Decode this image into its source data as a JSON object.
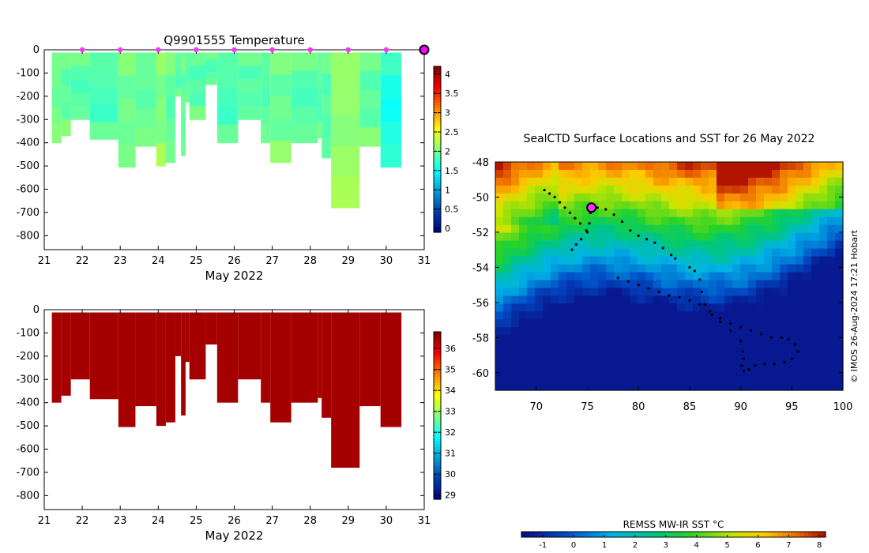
{
  "chart_data": [
    {
      "type": "heatmap",
      "title": "Q9901555  Temperature",
      "xlabel": "May 2022",
      "ylabel": "",
      "xlim": [
        21,
        31
      ],
      "ylim": [
        -860,
        0
      ],
      "xticks": [
        "21",
        "22",
        "23",
        "24",
        "25",
        "26",
        "27",
        "28",
        "29",
        "30",
        "31"
      ],
      "yticks": [
        "0",
        "-100",
        "-200",
        "-300",
        "-400",
        "-500",
        "-600",
        "-700",
        "-800"
      ],
      "colorbar_ticks": [
        "0",
        "0.5",
        "1",
        "1.5",
        "2",
        "2.5",
        "3",
        "3.5",
        "4"
      ],
      "colorbar_range": [
        -0.1,
        4.2
      ],
      "markers_x": [
        22,
        23,
        24,
        25,
        26,
        27,
        28,
        29,
        30
      ],
      "current_position_x": 31,
      "columns": [
        {
          "x0": 21.2,
          "x1": 21.45,
          "depth": 400,
          "value": 1.95
        },
        {
          "x0": 21.45,
          "x1": 21.7,
          "depth": 370,
          "value": 1.9
        },
        {
          "x0": 21.7,
          "x1": 22.2,
          "depth": 300,
          "value": 1.85
        },
        {
          "x0": 22.2,
          "x1": 22.95,
          "depth": 385,
          "value": 1.8
        },
        {
          "x0": 22.95,
          "x1": 23.4,
          "depth": 505,
          "value": 1.95
        },
        {
          "x0": 23.4,
          "x1": 23.95,
          "depth": 415,
          "value": 1.9
        },
        {
          "x0": 23.95,
          "x1": 24.2,
          "depth": 500,
          "value": 2.05
        },
        {
          "x0": 24.2,
          "x1": 24.45,
          "depth": 485,
          "value": 1.9
        },
        {
          "x0": 24.45,
          "x1": 24.6,
          "depth": 200,
          "value": 1.85
        },
        {
          "x0": 24.6,
          "x1": 24.72,
          "depth": 455,
          "value": 1.9
        },
        {
          "x0": 24.72,
          "x1": 24.82,
          "depth": 225,
          "value": 1.85
        },
        {
          "x0": 24.82,
          "x1": 25.25,
          "depth": 300,
          "value": 1.85
        },
        {
          "x0": 25.25,
          "x1": 25.55,
          "depth": 150,
          "value": 1.85
        },
        {
          "x0": 25.55,
          "x1": 26.1,
          "depth": 400,
          "value": 1.8
        },
        {
          "x0": 26.1,
          "x1": 26.7,
          "depth": 300,
          "value": 1.85
        },
        {
          "x0": 26.7,
          "x1": 26.95,
          "depth": 400,
          "value": 1.85
        },
        {
          "x0": 26.95,
          "x1": 27.5,
          "depth": 485,
          "value": 1.95
        },
        {
          "x0": 27.5,
          "x1": 28.2,
          "depth": 400,
          "value": 1.85
        },
        {
          "x0": 28.2,
          "x1": 28.3,
          "depth": 380,
          "value": 1.85
        },
        {
          "x0": 28.3,
          "x1": 28.55,
          "depth": 465,
          "value": 1.85
        },
        {
          "x0": 28.55,
          "x1": 29.3,
          "depth": 680,
          "value": 2.1
        },
        {
          "x0": 29.3,
          "x1": 29.85,
          "depth": 415,
          "value": 1.9
        },
        {
          "x0": 29.85,
          "x1": 30.4,
          "depth": 505,
          "value": 1.6
        }
      ]
    },
    {
      "type": "heatmap",
      "title": "",
      "xlabel": "May 2022",
      "ylabel": "",
      "xlim": [
        21,
        31
      ],
      "ylim": [
        -860,
        0
      ],
      "xticks": [
        "21",
        "22",
        "23",
        "24",
        "25",
        "26",
        "27",
        "28",
        "29",
        "30",
        "31"
      ],
      "yticks": [
        "0",
        "-100",
        "-200",
        "-300",
        "-400",
        "-500",
        "-600",
        "-700",
        "-800"
      ],
      "colorbar_ticks": [
        "29",
        "30",
        "31",
        "32",
        "33",
        "34",
        "35",
        "36"
      ],
      "colorbar_range": [
        28.8,
        36.8
      ],
      "fill_value": 36.5,
      "columns": [
        {
          "x0": 21.2,
          "x1": 21.45,
          "depth": 400
        },
        {
          "x0": 21.45,
          "x1": 21.7,
          "depth": 370
        },
        {
          "x0": 21.7,
          "x1": 22.2,
          "depth": 300
        },
        {
          "x0": 22.2,
          "x1": 22.95,
          "depth": 385
        },
        {
          "x0": 22.95,
          "x1": 23.4,
          "depth": 505
        },
        {
          "x0": 23.4,
          "x1": 23.95,
          "depth": 415
        },
        {
          "x0": 23.95,
          "x1": 24.2,
          "depth": 500
        },
        {
          "x0": 24.2,
          "x1": 24.45,
          "depth": 485
        },
        {
          "x0": 24.45,
          "x1": 24.6,
          "depth": 200
        },
        {
          "x0": 24.6,
          "x1": 24.72,
          "depth": 455
        },
        {
          "x0": 24.72,
          "x1": 24.82,
          "depth": 225
        },
        {
          "x0": 24.82,
          "x1": 25.25,
          "depth": 300
        },
        {
          "x0": 25.25,
          "x1": 25.55,
          "depth": 150
        },
        {
          "x0": 25.55,
          "x1": 26.1,
          "depth": 400
        },
        {
          "x0": 26.1,
          "x1": 26.7,
          "depth": 300
        },
        {
          "x0": 26.7,
          "x1": 26.95,
          "depth": 400
        },
        {
          "x0": 26.95,
          "x1": 27.5,
          "depth": 485
        },
        {
          "x0": 27.5,
          "x1": 28.2,
          "depth": 400
        },
        {
          "x0": 28.2,
          "x1": 28.3,
          "depth": 380
        },
        {
          "x0": 28.3,
          "x1": 28.55,
          "depth": 465
        },
        {
          "x0": 28.55,
          "x1": 29.3,
          "depth": 680
        },
        {
          "x0": 29.3,
          "x1": 29.85,
          "depth": 415
        },
        {
          "x0": 29.85,
          "x1": 30.4,
          "depth": 505
        }
      ]
    },
    {
      "type": "scatter",
      "title": "SealCTD Surface Locations and SST for 26 May 2022",
      "xlabel": "",
      "ylabel": "",
      "xlim": [
        66,
        100
      ],
      "ylim": [
        -61,
        -48
      ],
      "xticks": [
        "70",
        "75",
        "80",
        "85",
        "90",
        "95",
        "100"
      ],
      "yticks": [
        "-48",
        "-50",
        "-52",
        "-54",
        "-56",
        "-58",
        "-60"
      ],
      "colorbar_label": "REMSS MW-IR SST °C",
      "colorbar_ticks": [
        "-1",
        "0",
        "1",
        "2",
        "3",
        "4",
        "5",
        "6",
        "7",
        "8"
      ],
      "colorbar_range": [
        -1.7,
        8.2
      ],
      "current_position": {
        "lon": 75.4,
        "lat": -50.6
      },
      "tracks": [
        [
          [
            70.8,
            -49.6
          ],
          [
            71.3,
            -49.8
          ],
          [
            71.8,
            -50.0
          ],
          [
            72.3,
            -50.3
          ],
          [
            72.8,
            -50.6
          ],
          [
            73.3,
            -50.9
          ],
          [
            73.8,
            -51.2
          ],
          [
            74.3,
            -51.5
          ],
          [
            74.9,
            -51.9
          ]
        ],
        [
          [
            75.3,
            -50.7
          ],
          [
            76.0,
            -50.6
          ],
          [
            76.8,
            -50.7
          ],
          [
            77.6,
            -51.0
          ],
          [
            78.4,
            -51.4
          ],
          [
            79.2,
            -51.9
          ],
          [
            80.0,
            -52.2
          ],
          [
            80.8,
            -52.4
          ],
          [
            81.6,
            -52.6
          ],
          [
            82.4,
            -52.9
          ],
          [
            83.2,
            -53.3
          ],
          [
            83.6,
            -53.5
          ]
        ],
        [
          [
            75.3,
            -50.9
          ],
          [
            75.2,
            -51.5
          ],
          [
            75.0,
            -52.0
          ],
          [
            74.4,
            -52.4
          ],
          [
            73.9,
            -52.7
          ],
          [
            73.5,
            -53.0
          ]
        ],
        [
          [
            78.0,
            -54.6
          ],
          [
            79.0,
            -54.8
          ],
          [
            80.0,
            -55.0
          ],
          [
            81.0,
            -55.2
          ],
          [
            82.0,
            -55.4
          ],
          [
            83.0,
            -55.6
          ],
          [
            84.0,
            -55.7
          ],
          [
            85.0,
            -55.9
          ],
          [
            86.0,
            -56.1
          ],
          [
            87.0,
            -56.5
          ],
          [
            88.0,
            -56.9
          ],
          [
            89.0,
            -57.2
          ],
          [
            90.0,
            -57.4
          ],
          [
            91.0,
            -57.6
          ],
          [
            92.0,
            -57.8
          ],
          [
            93.0,
            -58.0
          ],
          [
            94.0,
            -58.0
          ],
          [
            94.7,
            -58.1
          ],
          [
            95.3,
            -58.4
          ],
          [
            95.6,
            -58.8
          ],
          [
            95.0,
            -59.2
          ],
          [
            94.3,
            -59.4
          ],
          [
            93.3,
            -59.5
          ],
          [
            92.3,
            -59.5
          ],
          [
            91.4,
            -59.6
          ],
          [
            90.8,
            -59.8
          ],
          [
            90.3,
            -59.9
          ],
          [
            90.1,
            -59.6
          ],
          [
            90.3,
            -59.2
          ],
          [
            90.2,
            -58.8
          ]
        ],
        [
          [
            85.0,
            -54.0
          ],
          [
            85.5,
            -54.2
          ],
          [
            86.0,
            -54.7
          ],
          [
            86.2,
            -55.4
          ],
          [
            86.5,
            -56.1
          ],
          [
            87.2,
            -56.7
          ],
          [
            88.0,
            -57.1
          ],
          [
            89.0,
            -57.6
          ],
          [
            90.0,
            -58.2
          ]
        ]
      ]
    }
  ],
  "side_text": "© IMOS 26-Aug-2024 17:21 Hobart"
}
